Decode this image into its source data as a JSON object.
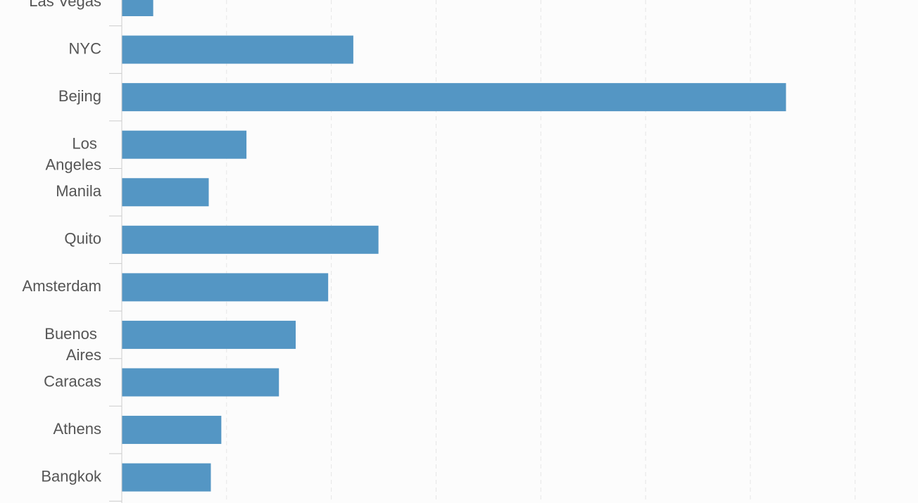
{
  "chart_data": {
    "type": "hbar",
    "categories": [
      "Las Vegas",
      "NYC",
      "Bejing",
      "Los Angeles",
      "Manila",
      "Quito",
      "Amsterdam",
      "Buenos Aires",
      "Caracas",
      "Athens",
      "Bangkok"
    ],
    "values": [
      0.3,
      2.21,
      6.34,
      1.19,
      0.83,
      2.45,
      1.97,
      1.66,
      1.5,
      0.95,
      0.85
    ],
    "color": "#5496c4",
    "xlim": [
      0,
      7.6
    ],
    "xticks": [
      0,
      1,
      2,
      3,
      4,
      5,
      6,
      7
    ],
    "grid": true
  }
}
